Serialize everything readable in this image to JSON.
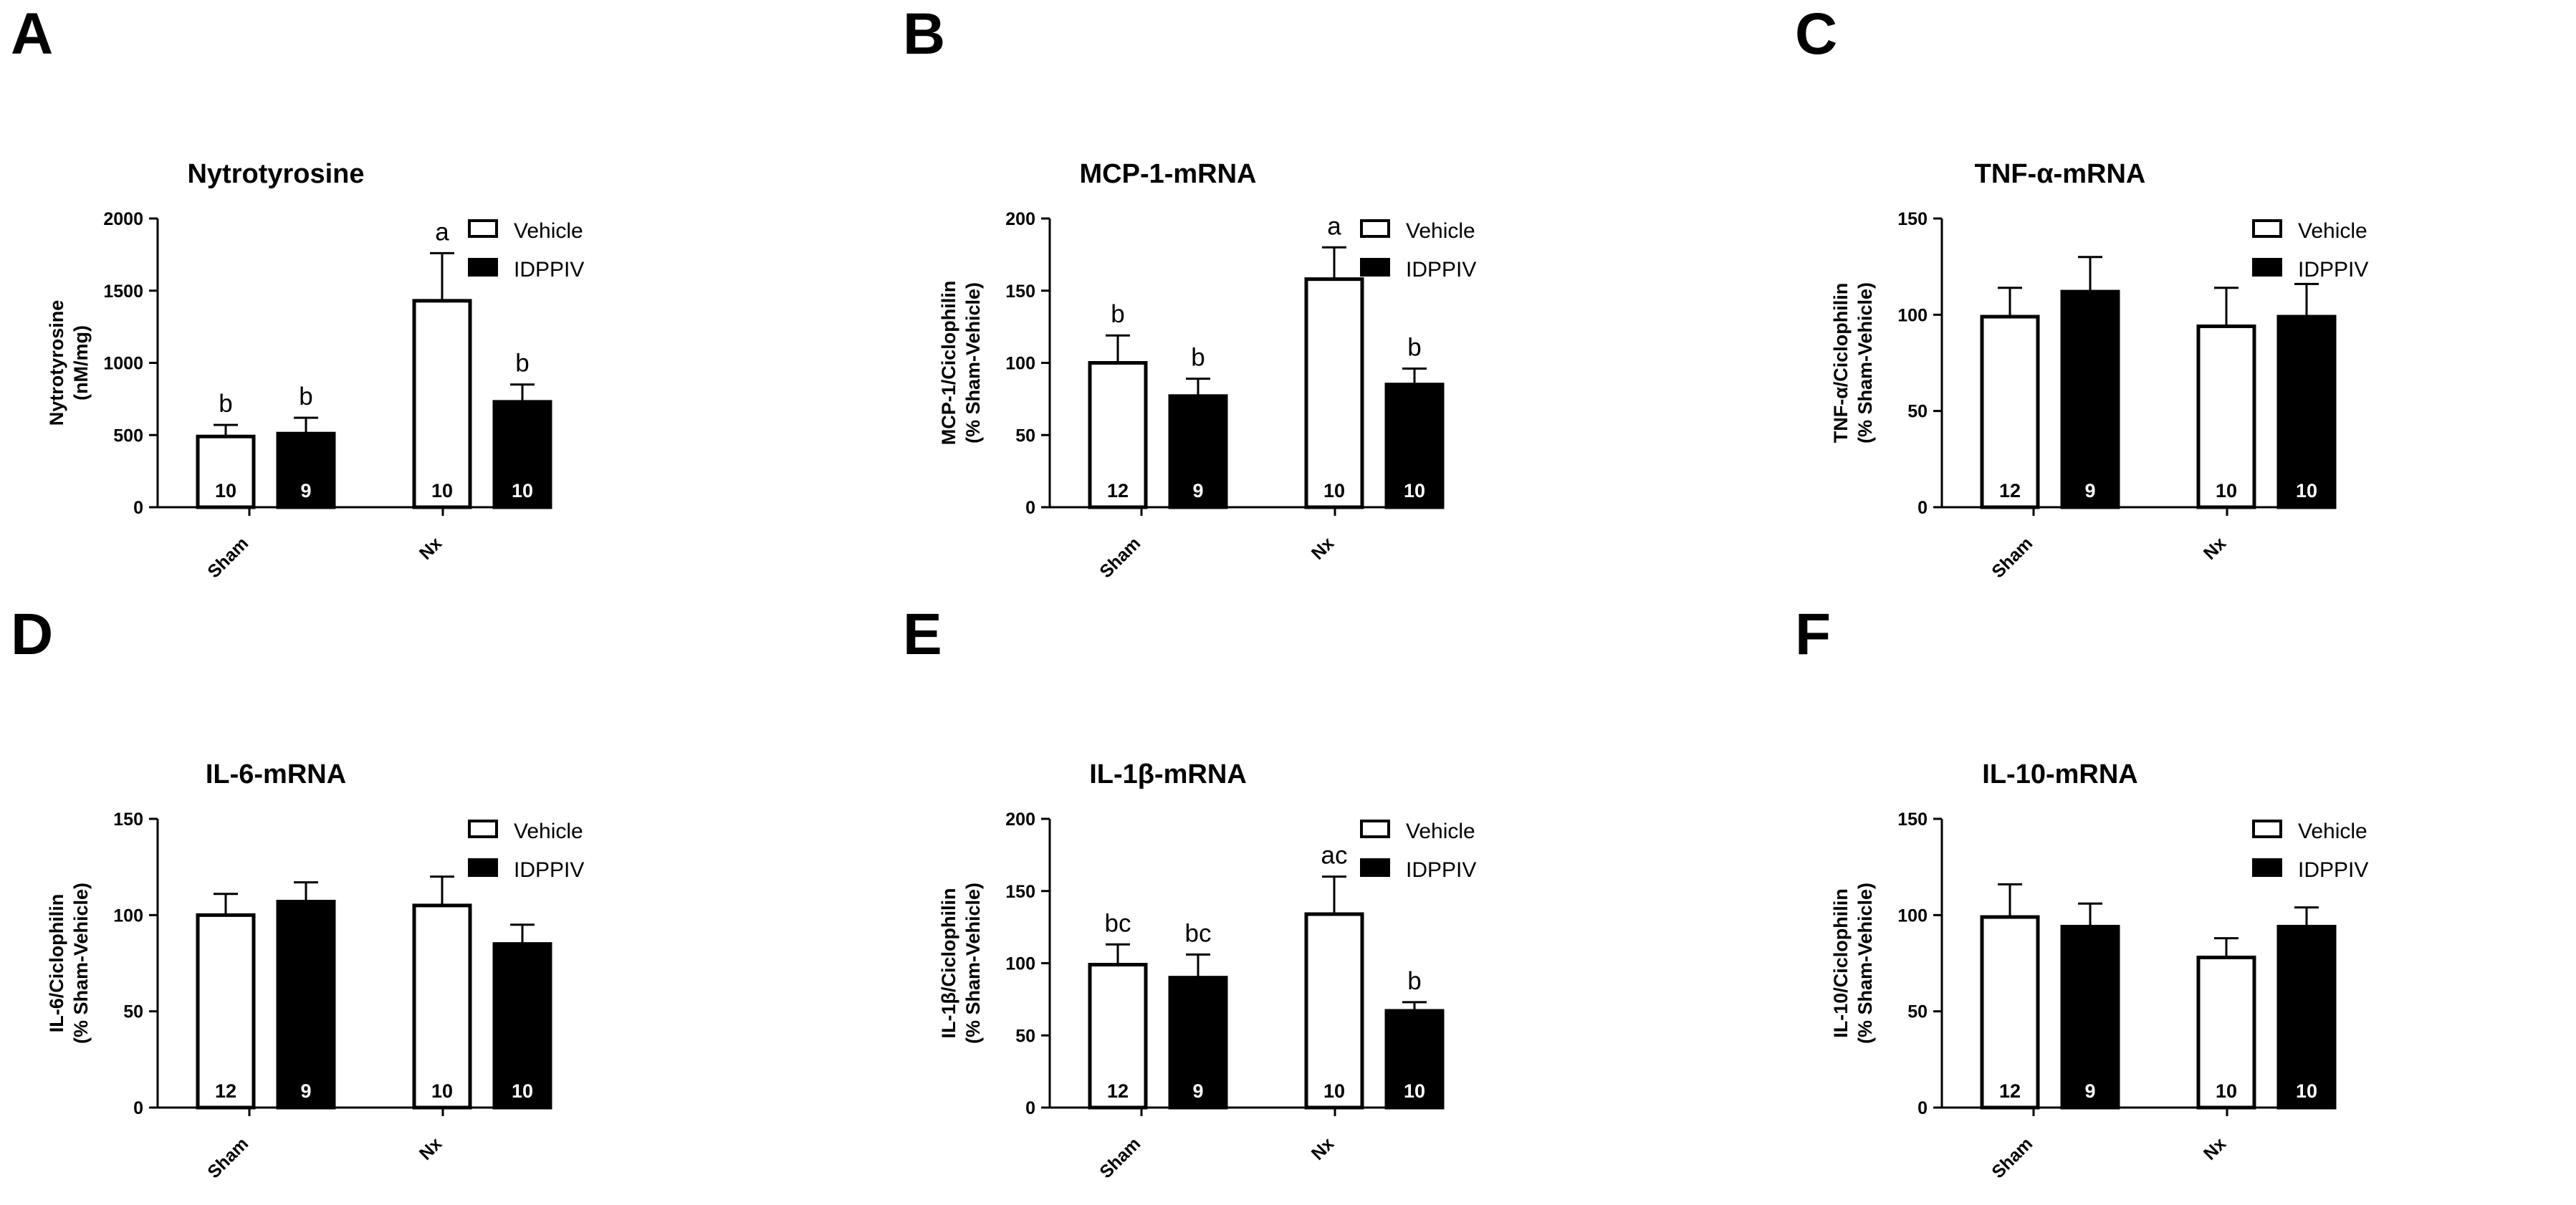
{
  "legend": {
    "entries": [
      {
        "label": "Vehicle",
        "fill": "#ffffff"
      },
      {
        "label": "IDPPIV",
        "fill": "#000000"
      }
    ]
  },
  "chart_data": [
    {
      "panel": "A",
      "type": "bar",
      "title": "Nytrotyrosine",
      "ylabel_lines": [
        "Nytrotyrosine",
        "(nM/mg)"
      ],
      "ylim": [
        0,
        2000
      ],
      "yticks": [
        0,
        500,
        1000,
        1500,
        2000
      ],
      "categories": [
        "Sham",
        "Nx"
      ],
      "series": [
        {
          "name": "Vehicle",
          "values": [
            490,
            1430
          ],
          "errors": [
            80,
            330
          ],
          "n": [
            "10",
            "10"
          ],
          "letters": [
            "b",
            "a"
          ]
        },
        {
          "name": "IDPPIV",
          "values": [
            510,
            730
          ],
          "errors": [
            110,
            120
          ],
          "n": [
            "9",
            "10"
          ],
          "letters": [
            "b",
            "b"
          ]
        }
      ]
    },
    {
      "panel": "B",
      "type": "bar",
      "title": "MCP-1-mRNA",
      "ylabel_lines": [
        "MCP-1/Ciclophilin",
        "(% Sham-Vehicle)"
      ],
      "ylim": [
        0,
        200
      ],
      "yticks": [
        0,
        50,
        100,
        150,
        200
      ],
      "categories": [
        "Sham",
        "Nx"
      ],
      "series": [
        {
          "name": "Vehicle",
          "values": [
            100,
            158
          ],
          "errors": [
            19,
            22
          ],
          "n": [
            "12",
            "10"
          ],
          "letters": [
            "b",
            "a"
          ]
        },
        {
          "name": "IDPPIV",
          "values": [
            77,
            85
          ],
          "errors": [
            12,
            11
          ],
          "n": [
            "9",
            "10"
          ],
          "letters": [
            "b",
            "b"
          ]
        }
      ]
    },
    {
      "panel": "C",
      "type": "bar",
      "title": "TNF-α-mRNA",
      "ylabel_lines": [
        "TNF-α/Ciclophilin",
        "(% Sham-Vehicle)"
      ],
      "ylim": [
        0,
        150
      ],
      "yticks": [
        0,
        50,
        100,
        150
      ],
      "categories": [
        "Sham",
        "Nx"
      ],
      "series": [
        {
          "name": "Vehicle",
          "values": [
            99,
            94
          ],
          "errors": [
            15,
            20
          ],
          "n": [
            "12",
            "10"
          ],
          "letters": [
            "",
            ""
          ]
        },
        {
          "name": "IDPPIV",
          "values": [
            112,
            99
          ],
          "errors": [
            18,
            17
          ],
          "n": [
            "9",
            "10"
          ],
          "letters": [
            "",
            ""
          ]
        }
      ]
    },
    {
      "panel": "D",
      "type": "bar",
      "title": "IL-6-mRNA",
      "ylabel_lines": [
        "IL-6/Ciclophilin",
        "(% Sham-Vehicle)"
      ],
      "ylim": [
        0,
        150
      ],
      "yticks": [
        0,
        50,
        100,
        150
      ],
      "categories": [
        "Sham",
        "Nx"
      ],
      "series": [
        {
          "name": "Vehicle",
          "values": [
            100,
            105
          ],
          "errors": [
            11,
            15
          ],
          "n": [
            "12",
            "10"
          ],
          "letters": [
            "",
            ""
          ]
        },
        {
          "name": "IDPPIV",
          "values": [
            107,
            85
          ],
          "errors": [
            10,
            10
          ],
          "n": [
            "9",
            "10"
          ],
          "letters": [
            "",
            ""
          ]
        }
      ]
    },
    {
      "panel": "E",
      "type": "bar",
      "title": "IL-1β-mRNA",
      "ylabel_lines": [
        "IL-1β/Ciclophilin",
        "(% Sham-Vehicle)"
      ],
      "ylim": [
        0,
        200
      ],
      "yticks": [
        0,
        50,
        100,
        150,
        200
      ],
      "categories": [
        "Sham",
        "Nx"
      ],
      "series": [
        {
          "name": "Vehicle",
          "values": [
            99,
            134
          ],
          "errors": [
            14,
            26
          ],
          "n": [
            "12",
            "10"
          ],
          "letters": [
            "bc",
            "ac"
          ]
        },
        {
          "name": "IDPPIV",
          "values": [
            90,
            67
          ],
          "errors": [
            16,
            6
          ],
          "n": [
            "9",
            "10"
          ],
          "letters": [
            "bc",
            "b"
          ]
        }
      ]
    },
    {
      "panel": "F",
      "type": "bar",
      "title": "IL-10-mRNA",
      "ylabel_lines": [
        "IL-10/Ciclophilin",
        "(% Sham-Vehicle)"
      ],
      "ylim": [
        0,
        150
      ],
      "yticks": [
        0,
        50,
        100,
        150
      ],
      "categories": [
        "Sham",
        "Nx"
      ],
      "series": [
        {
          "name": "Vehicle",
          "values": [
            99,
            78
          ],
          "errors": [
            17,
            10
          ],
          "n": [
            "12",
            "10"
          ],
          "letters": [
            "",
            ""
          ]
        },
        {
          "name": "IDPPIV",
          "values": [
            94,
            94
          ],
          "errors": [
            12,
            10
          ],
          "n": [
            "9",
            "10"
          ],
          "letters": [
            "",
            ""
          ]
        }
      ]
    }
  ]
}
